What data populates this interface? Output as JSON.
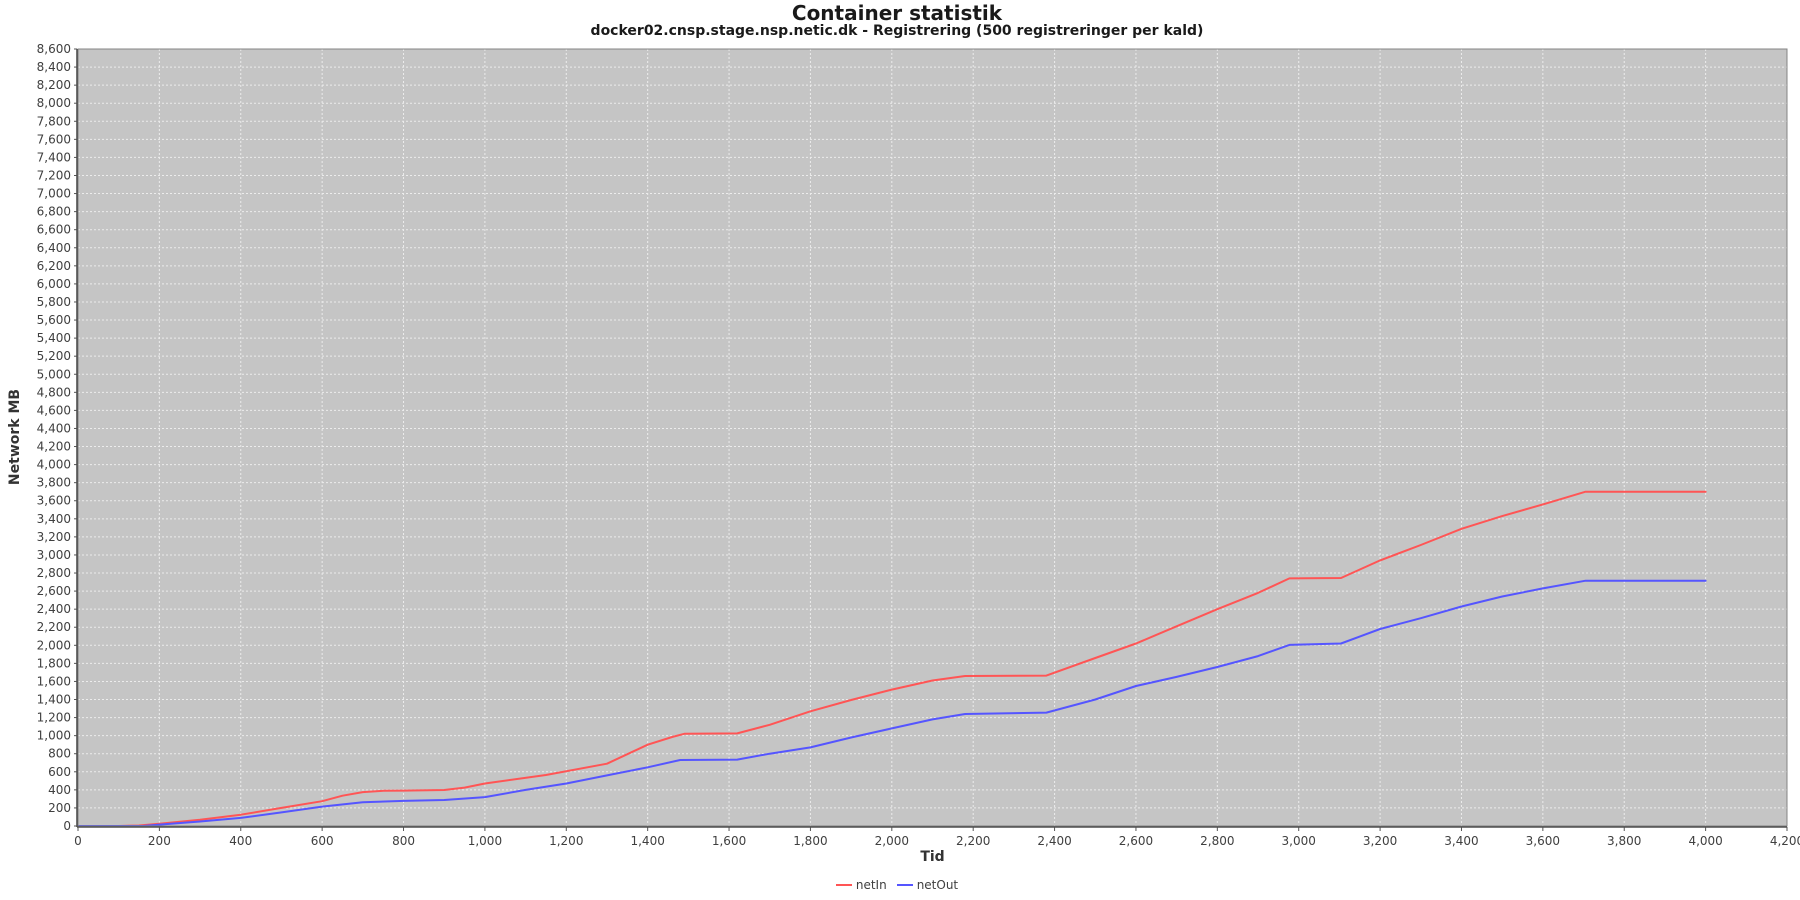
{
  "chart_data": {
    "type": "line",
    "title": "Container statistik",
    "subtitle": "docker02.cnsp.stage.nsp.netic.dk - Registrering (500 registreringer per kald)",
    "xlabel": "Tid",
    "ylabel": "Network MB",
    "xlim": [
      0,
      4200
    ],
    "ylim": [
      0,
      8600
    ],
    "x_tick_step": 200,
    "y_tick_step": 200,
    "grid": true,
    "legend_position": "bottom-center",
    "colors": {
      "plot_background": "#c5c5c5",
      "gridline": "#ececec",
      "plot_border": "#848484",
      "axis_line": "#4f4f4f",
      "tick_mark": "#545454",
      "tick_label": "#3f3f3f"
    },
    "series": [
      {
        "name": "netIn",
        "color": "#ff5555",
        "points": [
          [
            0,
            0
          ],
          [
            100,
            0
          ],
          [
            150,
            5
          ],
          [
            200,
            25
          ],
          [
            300,
            70
          ],
          [
            400,
            125
          ],
          [
            500,
            200
          ],
          [
            600,
            275
          ],
          [
            650,
            335
          ],
          [
            700,
            375
          ],
          [
            750,
            390
          ],
          [
            800,
            392
          ],
          [
            900,
            398
          ],
          [
            950,
            425
          ],
          [
            1000,
            470
          ],
          [
            1150,
            565
          ],
          [
            1300,
            690
          ],
          [
            1400,
            900
          ],
          [
            1460,
            985
          ],
          [
            1490,
            1020
          ],
          [
            1620,
            1025
          ],
          [
            1700,
            1120
          ],
          [
            1800,
            1270
          ],
          [
            1900,
            1395
          ],
          [
            2000,
            1510
          ],
          [
            2100,
            1610
          ],
          [
            2180,
            1660
          ],
          [
            2380,
            1665
          ],
          [
            2500,
            1860
          ],
          [
            2600,
            2020
          ],
          [
            2700,
            2210
          ],
          [
            2800,
            2400
          ],
          [
            2900,
            2580
          ],
          [
            2977,
            2740
          ],
          [
            3104,
            2745
          ],
          [
            3200,
            2940
          ],
          [
            3300,
            3110
          ],
          [
            3400,
            3290
          ],
          [
            3500,
            3430
          ],
          [
            3600,
            3560
          ],
          [
            3705,
            3700
          ],
          [
            4000,
            3700
          ]
        ]
      },
      {
        "name": "netOut",
        "color": "#5555ff",
        "points": [
          [
            0,
            0
          ],
          [
            100,
            0
          ],
          [
            160,
            0
          ],
          [
            200,
            15
          ],
          [
            300,
            50
          ],
          [
            400,
            90
          ],
          [
            500,
            150
          ],
          [
            600,
            215
          ],
          [
            700,
            262
          ],
          [
            800,
            278
          ],
          [
            900,
            288
          ],
          [
            1000,
            320
          ],
          [
            1100,
            400
          ],
          [
            1200,
            470
          ],
          [
            1300,
            560
          ],
          [
            1400,
            650
          ],
          [
            1480,
            730
          ],
          [
            1620,
            735
          ],
          [
            1700,
            800
          ],
          [
            1800,
            870
          ],
          [
            1900,
            980
          ],
          [
            2000,
            1080
          ],
          [
            2100,
            1180
          ],
          [
            2180,
            1240
          ],
          [
            2380,
            1255
          ],
          [
            2500,
            1400
          ],
          [
            2600,
            1550
          ],
          [
            2700,
            1650
          ],
          [
            2800,
            1760
          ],
          [
            2900,
            1880
          ],
          [
            2977,
            2005
          ],
          [
            3104,
            2020
          ],
          [
            3200,
            2180
          ],
          [
            3300,
            2300
          ],
          [
            3400,
            2430
          ],
          [
            3500,
            2540
          ],
          [
            3600,
            2630
          ],
          [
            3705,
            2715
          ],
          [
            4000,
            2715
          ]
        ]
      }
    ]
  }
}
